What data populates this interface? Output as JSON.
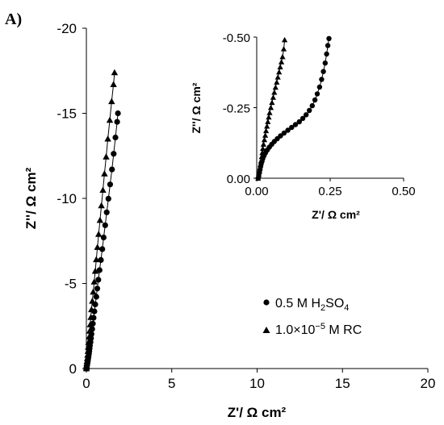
{
  "panel_label": "A)",
  "chart_data": [
    {
      "id": "main",
      "type": "scatter",
      "xlabel": "Z'/ Ω cm²",
      "ylabel": "Z''/ Ω cm²",
      "xlim": [
        0,
        20
      ],
      "ylim": [
        0,
        -20
      ],
      "xticks": [
        0,
        5,
        10,
        15,
        20
      ],
      "yticks": [
        0,
        -5,
        -10,
        -15,
        -20
      ],
      "xtick_labels": [
        "0",
        "5",
        "10",
        "15",
        "20"
      ],
      "ytick_labels": [
        "0",
        "-5",
        "-10",
        "-15",
        "-20"
      ],
      "grid": false,
      "legend": {
        "placement": "bottom-right",
        "entries": [
          {
            "marker": "circle",
            "label": "0.5 M H",
            "sub": "2",
            "label2": "SO",
            "sub2": "4"
          },
          {
            "marker": "triangle",
            "label": "1.0×10",
            "sup": "−5",
            "label2": " M RC"
          }
        ]
      },
      "series": [
        {
          "marker": "circle",
          "x": [
            0.0,
            0.01,
            0.02,
            0.03,
            0.05,
            0.07,
            0.09,
            0.11,
            0.13,
            0.15,
            0.17,
            0.19,
            0.21,
            0.24,
            0.27,
            0.3,
            0.34,
            0.38,
            0.42,
            0.47,
            0.52,
            0.58,
            0.64,
            0.7,
            0.77,
            0.85,
            0.93,
            1.01,
            1.1,
            1.19,
            1.29,
            1.39,
            1.5,
            1.6,
            1.7,
            1.8,
            1.85
          ],
          "y": [
            0.0,
            -0.05,
            -0.1,
            -0.18,
            -0.27,
            -0.37,
            -0.48,
            -0.6,
            -0.73,
            -0.87,
            -1.02,
            -1.18,
            -1.35,
            -1.55,
            -1.78,
            -2.03,
            -2.32,
            -2.64,
            -2.98,
            -3.36,
            -3.77,
            -4.22,
            -4.7,
            -5.22,
            -5.78,
            -6.38,
            -7.02,
            -7.7,
            -8.42,
            -9.18,
            -9.98,
            -10.82,
            -11.7,
            -12.62,
            -13.58,
            -14.5,
            -15.0
          ]
        },
        {
          "marker": "triangle",
          "x": [
            0.0,
            0.01,
            0.02,
            0.03,
            0.04,
            0.05,
            0.07,
            0.09,
            0.11,
            0.13,
            0.16,
            0.19,
            0.22,
            0.26,
            0.3,
            0.35,
            0.4,
            0.46,
            0.52,
            0.58,
            0.65,
            0.72,
            0.8,
            0.88,
            0.97,
            1.06,
            1.16,
            1.26,
            1.37,
            1.48,
            1.59,
            1.65
          ],
          "y": [
            0.0,
            -0.08,
            -0.18,
            -0.3,
            -0.44,
            -0.6,
            -0.8,
            -1.02,
            -1.27,
            -1.55,
            -1.86,
            -2.21,
            -2.59,
            -3.01,
            -3.47,
            -3.97,
            -4.51,
            -5.1,
            -5.73,
            -6.41,
            -7.13,
            -7.9,
            -8.72,
            -9.58,
            -10.49,
            -11.45,
            -12.45,
            -13.5,
            -14.6,
            -15.7,
            -16.7,
            -17.4
          ]
        }
      ]
    },
    {
      "id": "inset",
      "type": "scatter",
      "xlabel": "Z'/ Ω cm²",
      "ylabel": "Z''/ Ω cm²",
      "xlim": [
        0,
        0.5
      ],
      "ylim": [
        0,
        -0.5
      ],
      "xticks": [
        0,
        0.25,
        0.5
      ],
      "yticks": [
        0,
        -0.25,
        -0.5
      ],
      "xtick_labels": [
        "0.00",
        "0.25",
        "0.50"
      ],
      "ytick_labels": [
        "0.00",
        "-0.25",
        "-0.50"
      ],
      "grid": false,
      "series": [
        {
          "marker": "circle",
          "x": [
            0.005,
            0.007,
            0.009,
            0.011,
            0.013,
            0.015,
            0.018,
            0.021,
            0.025,
            0.03,
            0.036,
            0.043,
            0.051,
            0.06,
            0.07,
            0.081,
            0.093,
            0.106,
            0.119,
            0.132,
            0.145,
            0.157,
            0.168,
            0.179,
            0.189,
            0.198,
            0.206,
            0.214,
            0.221,
            0.227,
            0.233,
            0.238,
            0.242,
            0.246
          ],
          "y": [
            0.0,
            -0.01,
            -0.02,
            -0.03,
            -0.04,
            -0.05,
            -0.06,
            -0.07,
            -0.08,
            -0.09,
            -0.1,
            -0.11,
            -0.12,
            -0.13,
            -0.14,
            -0.15,
            -0.16,
            -0.17,
            -0.18,
            -0.19,
            -0.2,
            -0.212,
            -0.225,
            -0.24,
            -0.257,
            -0.277,
            -0.299,
            -0.323,
            -0.35,
            -0.378,
            -0.408,
            -0.44,
            -0.47,
            -0.495
          ]
        },
        {
          "marker": "triangle",
          "x": [
            0.005,
            0.007,
            0.009,
            0.011,
            0.013,
            0.015,
            0.017,
            0.019,
            0.021,
            0.023,
            0.026,
            0.029,
            0.032,
            0.035,
            0.038,
            0.041,
            0.044,
            0.048,
            0.052,
            0.056,
            0.06,
            0.064,
            0.068,
            0.072,
            0.076,
            0.08,
            0.084,
            0.088,
            0.092,
            0.095
          ],
          "y": [
            0.0,
            -0.012,
            -0.024,
            -0.036,
            -0.049,
            -0.062,
            -0.076,
            -0.09,
            -0.105,
            -0.12,
            -0.136,
            -0.152,
            -0.168,
            -0.184,
            -0.2,
            -0.216,
            -0.232,
            -0.25,
            -0.268,
            -0.286,
            -0.304,
            -0.322,
            -0.34,
            -0.358,
            -0.376,
            -0.394,
            -0.412,
            -0.43,
            -0.458,
            -0.49
          ]
        }
      ]
    }
  ]
}
